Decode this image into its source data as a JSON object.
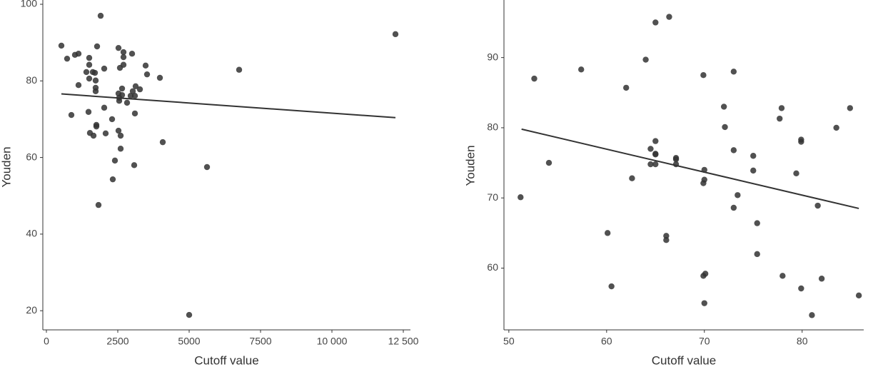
{
  "chart_data": [
    {
      "type": "scatter",
      "x_label": "Cutoff value",
      "y_label": "Youden",
      "color": "#333333",
      "xlim": [
        -125,
        12750
      ],
      "ylim": [
        15,
        100
      ],
      "xticks": [
        0,
        2500,
        5000,
        7500,
        {
          "value": 10000,
          "label": "10 000"
        },
        {
          "value": 12500,
          "label": "12 500"
        }
      ],
      "yticks": [
        20,
        40,
        60,
        80,
        100
      ],
      "x": [
        525,
        725,
        1000,
        1125,
        875,
        1125,
        1400,
        1500,
        1500,
        1500,
        1625,
        1700,
        1725,
        1725,
        1725,
        1775,
        1900,
        1475,
        1525,
        1650,
        1750,
        1750,
        1825,
        2025,
        2025,
        2075,
        2300,
        2325,
        2400,
        2525,
        2575,
        2700,
        2700,
        2700,
        2525,
        2550,
        2550,
        2650,
        2650,
        2525,
        2600,
        2600,
        2825,
        3000,
        2950,
        3025,
        3125,
        3100,
        3100,
        3075,
        3275,
        3475,
        3525,
        3975,
        4075,
        5000,
        5625,
        6750,
        12225
      ],
      "values": [
        89.2,
        85.8,
        86.8,
        87.1,
        71.1,
        78.9,
        82.3,
        84.2,
        80.6,
        86.0,
        82.3,
        82.1,
        80.1,
        78.2,
        77.3,
        89.0,
        97.0,
        71.9,
        66.4,
        65.7,
        68.5,
        68.1,
        47.6,
        73.0,
        83.2,
        66.3,
        70.0,
        54.3,
        59.2,
        88.6,
        83.4,
        86.2,
        87.5,
        84.2,
        76.7,
        75.6,
        74.8,
        78.0,
        76.3,
        67.0,
        65.7,
        62.3,
        74.3,
        87.1,
        76.1,
        77.3,
        78.6,
        76.1,
        71.5,
        58.0,
        77.8,
        84.0,
        81.7,
        80.8,
        64.0,
        18.9,
        57.5,
        82.9,
        92.2
      ],
      "trend_x": [
        525,
        12225
      ],
      "trend_values": [
        76.6,
        70.4
      ]
    },
    {
      "type": "scatter",
      "x_label": "Cutoff value",
      "y_label": "Youden",
      "color": "#333333",
      "xlim": [
        49.5,
        86.3
      ],
      "ylim": [
        51.2,
        98
      ],
      "xticks": [
        50,
        60,
        70,
        80
      ],
      "yticks": [
        60,
        70,
        80,
        90
      ],
      "x": [
        51.2,
        52.6,
        54.1,
        57.4,
        60.1,
        60.5,
        62.0,
        62.6,
        64.0,
        64.5,
        64.5,
        65.0,
        65.0,
        65.0,
        65.0,
        65.0,
        66.1,
        66.1,
        66.4,
        67.1,
        67.1,
        67.1,
        69.9,
        70.0,
        70.0,
        69.9,
        69.9,
        70.1,
        70.0,
        72.0,
        72.1,
        73.0,
        73.0,
        73.0,
        73.4,
        75.0,
        75.0,
        75.4,
        75.4,
        77.9,
        77.7,
        78.0,
        79.4,
        79.9,
        79.9,
        79.9,
        81.0,
        81.6,
        82.0,
        83.5,
        84.9,
        85.8
      ],
      "values": [
        70.1,
        87.0,
        75.0,
        88.3,
        65.0,
        57.4,
        85.7,
        72.8,
        89.7,
        77.0,
        74.8,
        95.0,
        78.1,
        76.3,
        76.2,
        74.8,
        64.6,
        64.0,
        95.8,
        75.7,
        75.5,
        74.8,
        87.5,
        74.0,
        72.6,
        72.1,
        58.9,
        59.2,
        55.0,
        83.0,
        80.1,
        88.0,
        76.8,
        68.6,
        70.4,
        76.0,
        73.9,
        66.4,
        62.0,
        82.8,
        81.3,
        58.9,
        73.5,
        78.3,
        78.0,
        57.1,
        53.3,
        68.9,
        58.5,
        80.0,
        82.8,
        56.1
      ],
      "trend_x": [
        51.3,
        85.8
      ],
      "trend_values": [
        79.8,
        68.5
      ]
    }
  ]
}
